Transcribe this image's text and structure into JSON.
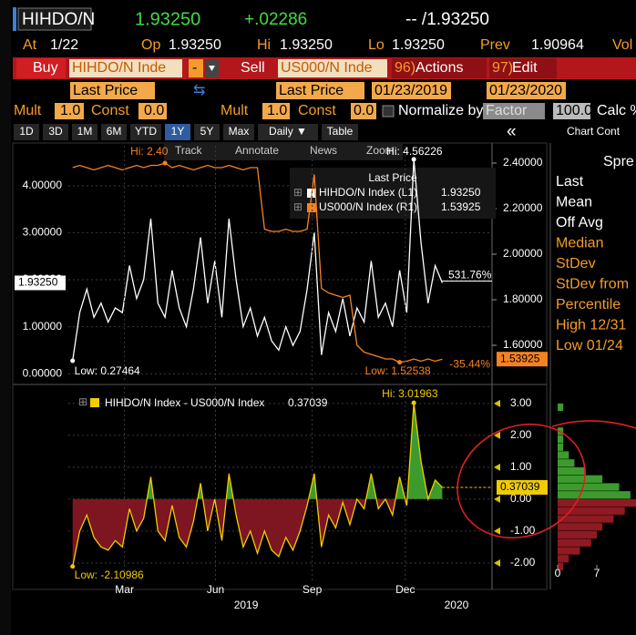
{
  "header": {
    "ticker": "HIHDO/N",
    "last": "1.93250",
    "change": "+.02286",
    "bidask": "-- /1.93250",
    "at_label": "At",
    "at": "1/22",
    "op_label": "Op",
    "op": "1.93250",
    "hi_label": "Hi",
    "hi": "1.93250",
    "lo_label": "Lo",
    "lo": "1.93250",
    "prev_label": "Prev",
    "prev": "1.90964",
    "vol_label": "Vol"
  },
  "toolbar": {
    "buy": "Buy",
    "buy_ticker": "HIHDO/N Inde",
    "minus": "-",
    "sell": "Sell",
    "sell_ticker": "US000/N Inde",
    "actions_num": "96)",
    "actions": "Actions",
    "edit_num": "97)",
    "edit": "Edit"
  },
  "settings": {
    "field1": "Last Price",
    "field2": "Last Price",
    "start": "01/23/2019",
    "end": "01/23/2020",
    "mult_label": "Mult",
    "const_label": "Const",
    "mult1": "1.0",
    "const1": "0.0",
    "mult2": "1.0",
    "const2": "0.0",
    "normalize": "Normalize by",
    "factor": "Factor",
    "factor_value": "100.0",
    "calc": "Calc %"
  },
  "tabs": [
    "1D",
    "3D",
    "1M",
    "6M",
    "YTD",
    "1Y",
    "5Y",
    "Max",
    "Daily ▼",
    "Table"
  ],
  "active_tab": "1Y",
  "collapse": "«",
  "chart_controls": "Chart Cont",
  "chart_tools": [
    "Track",
    "Annotate",
    "News",
    "Zoom"
  ],
  "side_panel": {
    "title": "Spre",
    "rows": [
      {
        "label": "Last",
        "color": "#ffffff"
      },
      {
        "label": "Mean",
        "color": "#ffffff"
      },
      {
        "label": "Off Avg",
        "color": "#ffffff"
      },
      {
        "label": "Median",
        "color": "#f39c2a"
      },
      {
        "label": "StDev",
        "color": "#f39c2a"
      },
      {
        "label": "StDev from",
        "color": "#f39c2a"
      },
      {
        "label": "Percentile",
        "color": "#f39c2a"
      },
      {
        "label": "High 12/31",
        "color": "#f39c2a"
      },
      {
        "label": "Low 01/24",
        "color": "#f39c2a"
      }
    ]
  },
  "chart_data": [
    {
      "type": "line",
      "legend_title": "Last Price",
      "xlim": [
        -0.6,
        59
      ],
      "ylim": [
        -0.19,
        4.85
      ],
      "yticks": [
        {
          "value": 0,
          "label": "0.00000"
        },
        {
          "value": 1,
          "label": "1.00000"
        },
        {
          "value": 2,
          "label": "2.00000"
        },
        {
          "value": 3,
          "label": "3.00000"
        },
        {
          "value": 4,
          "label": "4.00000"
        }
      ],
      "y2lim": [
        1.436,
        2.476
      ],
      "y2ticks": [
        {
          "value": 1.6,
          "label": "1.60000"
        },
        {
          "value": 1.8,
          "label": "1.80000"
        },
        {
          "value": 2.0,
          "label": "2.00000"
        },
        {
          "value": 2.2,
          "label": "2.20000"
        },
        {
          "value": 2.4,
          "label": "2.40000"
        }
      ],
      "grid": true,
      "series": [
        {
          "name": "HIHDO/N Index (L1)",
          "color": "#ffffff",
          "last_label": "1.93250",
          "change_label": "531.76%",
          "hi_label": "Hi: 4.56226",
          "low_label": "Low: 0.27464",
          "values": [
            0.27464,
            1.3,
            1.8,
            1.2,
            1.5,
            1.1,
            1.4,
            1.3,
            2.3,
            1.6,
            2.0,
            3.3,
            1.5,
            1.2,
            2.2,
            1.4,
            1.0,
            1.8,
            2.9,
            1.5,
            2.4,
            1.2,
            3.3,
            2.0,
            1.0,
            1.4,
            0.8,
            1.2,
            0.7,
            0.5,
            1.0,
            0.6,
            0.9,
            1.8,
            3.0,
            0.4,
            1.3,
            0.9,
            1.6,
            0.8,
            1.4,
            1.1,
            2.4,
            1.2,
            1.5,
            1.0,
            2.2,
            1.3,
            4.56226,
            2.8,
            1.5,
            2.3,
            1.9325
          ]
        },
        {
          "name": "US000/N Index (R1)",
          "color": "#f58220",
          "axis": "y2",
          "last_label": "1.53925",
          "change_label": "-35.44%",
          "hi_label": "Hi: 2.40",
          "low_label": "Low: 1.52538",
          "values": [
            2.38,
            2.39,
            2.38,
            2.37,
            2.38,
            2.39,
            2.38,
            2.37,
            2.38,
            2.39,
            2.38,
            2.39,
            2.39,
            2.4,
            2.38,
            2.39,
            2.38,
            2.37,
            2.38,
            2.39,
            2.38,
            2.38,
            2.39,
            2.38,
            2.37,
            2.38,
            2.38,
            2.11,
            2.1,
            2.1,
            2.11,
            2.1,
            2.1,
            2.11,
            2.35,
            1.85,
            1.83,
            1.82,
            1.81,
            1.82,
            1.6,
            1.57,
            1.56,
            1.55,
            1.54,
            1.54,
            1.52538,
            1.53,
            1.54,
            1.53,
            1.54,
            1.53,
            1.53925
          ]
        }
      ]
    },
    {
      "type": "area",
      "xlim": [
        -0.6,
        59
      ],
      "ylim": [
        -2.63,
        3.51
      ],
      "yticks": [
        {
          "value": -2,
          "label": "-2.00"
        },
        {
          "value": -1,
          "label": "-1.00"
        },
        {
          "value": 0,
          "label": "0.00"
        },
        {
          "value": 1,
          "label": "1.00"
        },
        {
          "value": 2,
          "label": "2.00"
        },
        {
          "value": 3,
          "label": "3.00"
        }
      ],
      "xticks": [
        {
          "value": 7.3,
          "label": "Mar"
        },
        {
          "value": 20.1,
          "label": "Jun"
        },
        {
          "value": 33.7,
          "label": "Sep"
        },
        {
          "value": 46.8,
          "label": "Dec"
        }
      ],
      "xticks2": [
        {
          "value": 24.4,
          "label": "2019"
        },
        {
          "value": 54,
          "label": "2020"
        }
      ],
      "grid": true,
      "pos_color": "#3d9b2e",
      "neg_color": "#7d1620",
      "series": [
        {
          "name": "HIHDO/N Index - US000/N Index",
          "color": "#f0cc00",
          "last_label": "0.37039",
          "hi_label": "Hi: 3.01963",
          "low_label": "Low: -2.10986",
          "values": [
            -2.10986,
            -1.0,
            -0.5,
            -1.2,
            -1.5,
            -1.6,
            -1.3,
            -1.5,
            -0.3,
            -1.0,
            -0.6,
            0.7,
            -1.0,
            -1.3,
            -0.2,
            -1.2,
            -1.5,
            -0.7,
            0.5,
            -1.0,
            0.0,
            -1.3,
            0.8,
            -0.5,
            -1.5,
            -1.0,
            -1.7,
            -1.0,
            -1.6,
            -1.8,
            -1.2,
            -1.6,
            -1.0,
            -0.2,
            0.8,
            -1.5,
            -0.5,
            -0.9,
            -0.1,
            -0.8,
            0.0,
            -0.3,
            0.8,
            -0.3,
            0.0,
            -0.5,
            0.7,
            -0.2,
            3.01963,
            1.2,
            0.0,
            0.6,
            0.37039
          ]
        }
      ]
    },
    {
      "type": "histogram",
      "bins": [
        -2.25,
        -2,
        -1.75,
        -1.5,
        -1.25,
        -1,
        -0.75,
        -0.5,
        -0.25,
        0,
        0.25,
        0.5,
        0.75,
        1,
        1.25,
        1.5,
        1.75,
        2,
        2.25,
        2.5,
        2.75,
        3,
        3.25
      ],
      "counts": [
        1,
        2,
        4,
        6,
        7,
        8,
        10,
        12,
        14,
        13,
        11,
        8,
        5,
        3,
        2,
        1,
        1,
        1,
        0,
        0,
        1,
        0
      ],
      "xlim": [
        0,
        14
      ],
      "xticks": [
        0,
        7
      ],
      "pos_color": "#3d9b2e",
      "neg_color": "#8e1a22"
    }
  ]
}
